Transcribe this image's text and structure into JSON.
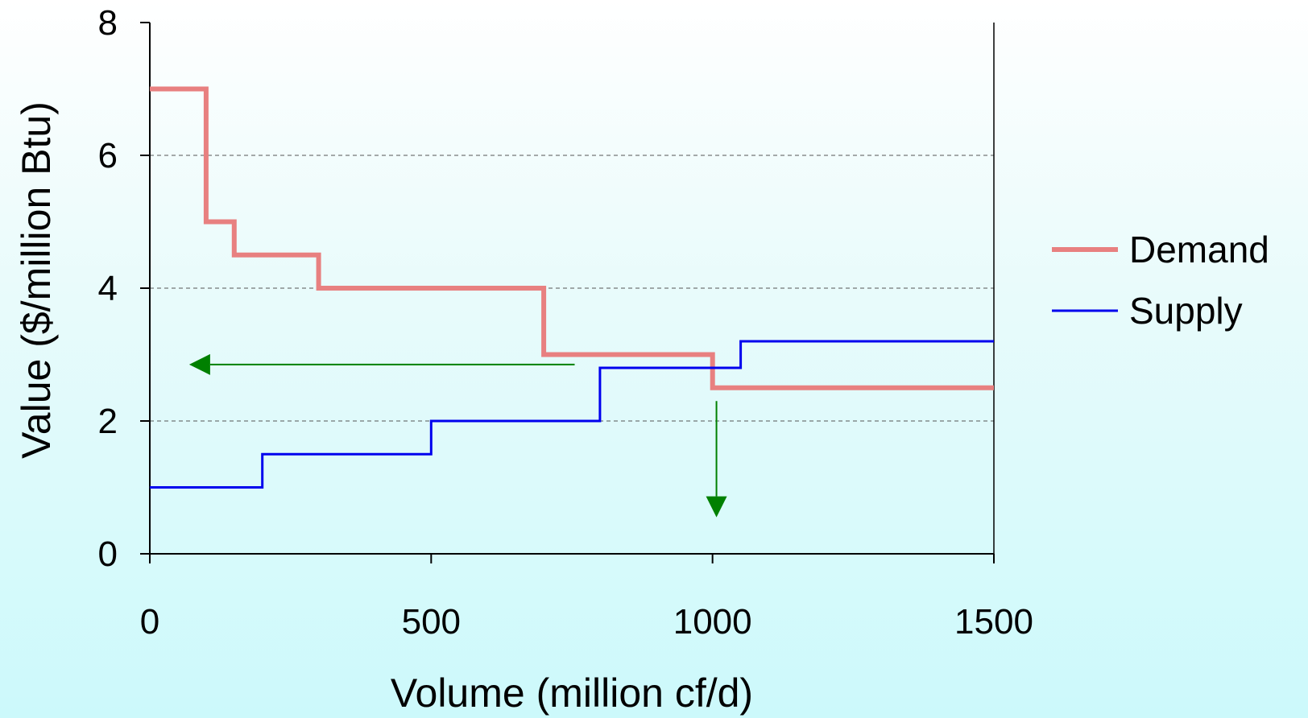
{
  "chart_data": {
    "type": "line",
    "subtype": "step",
    "xlabel": "Volume (million cf/d)",
    "ylabel": "Value ($/million Btu)",
    "xlim": [
      0,
      1500
    ],
    "ylim": [
      0,
      8
    ],
    "x_ticks": [
      "0",
      "500",
      "1000",
      "1500"
    ],
    "y_ticks": [
      "0",
      "2",
      "4",
      "6",
      "8"
    ],
    "grid": "horizontal dashed",
    "legend_position": "right",
    "series": [
      {
        "name": "Demand",
        "color": "#e88080",
        "points": [
          [
            0,
            7
          ],
          [
            100,
            7
          ],
          [
            100,
            5
          ],
          [
            150,
            5
          ],
          [
            150,
            4.5
          ],
          [
            300,
            4.5
          ],
          [
            300,
            4
          ],
          [
            700,
            4
          ],
          [
            700,
            3
          ],
          [
            1000,
            3
          ],
          [
            1000,
            2.5
          ],
          [
            1500,
            2.5
          ]
        ]
      },
      {
        "name": "Supply",
        "color": "#0000ee",
        "points": [
          [
            0,
            1
          ],
          [
            200,
            1
          ],
          [
            200,
            1.5
          ],
          [
            500,
            1.5
          ],
          [
            500,
            2
          ],
          [
            800,
            2
          ],
          [
            800,
            2.8
          ],
          [
            1050,
            2.8
          ],
          [
            1050,
            3.2
          ],
          [
            1500,
            3.2
          ]
        ]
      }
    ],
    "annotations": [
      {
        "type": "arrow",
        "color": "#008000",
        "from": [
          755,
          2.85
        ],
        "to": [
          70,
          2.85
        ]
      },
      {
        "type": "arrow",
        "color": "#008000",
        "from": [
          1007,
          2.3
        ],
        "to": [
          1007,
          0.55
        ]
      }
    ]
  }
}
